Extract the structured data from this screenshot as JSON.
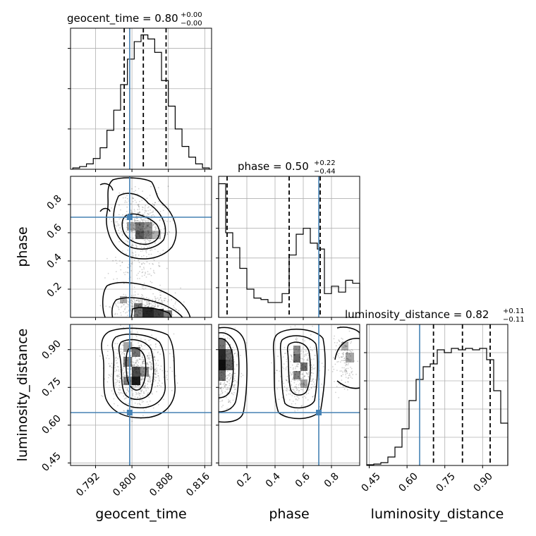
{
  "chart_data": [
    {
      "type": "histogram",
      "panel": "geocent_time-1d",
      "title_param": "geocent_time = 0.80",
      "title_sup": "+0.00",
      "title_sub": "−0.00",
      "xlim": [
        0.7865,
        0.8175
      ],
      "bins": [
        0.787,
        0.7885,
        0.79,
        0.7915,
        0.793,
        0.7945,
        0.796,
        0.7975,
        0.799,
        0.8005,
        0.802,
        0.8035,
        0.805,
        0.8065,
        0.808,
        0.8095,
        0.811,
        0.8125,
        0.814,
        0.8155,
        0.817
      ],
      "heights": [
        0.01,
        0.02,
        0.04,
        0.08,
        0.16,
        0.29,
        0.44,
        0.63,
        0.82,
        0.95,
        1.0,
        0.97,
        0.87,
        0.66,
        0.47,
        0.3,
        0.17,
        0.09,
        0.04,
        0.01
      ],
      "quantiles": [
        0.7983,
        0.8025,
        0.8075
      ],
      "truth": 0.7995
    },
    {
      "type": "histogram",
      "panel": "phase-1d",
      "title_param": "phase = 0.50",
      "title_sup": "+0.22",
      "title_sub": "−0.44",
      "xlim": [
        0.0,
        1.0
      ],
      "bins": [
        0.0,
        0.05,
        0.1,
        0.15,
        0.2,
        0.25,
        0.3,
        0.35,
        0.4,
        0.45,
        0.5,
        0.55,
        0.6,
        0.65,
        0.7,
        0.75,
        0.8,
        0.85,
        0.9,
        0.95,
        1.0
      ],
      "heights": [
        0.9,
        0.57,
        0.47,
        0.33,
        0.19,
        0.13,
        0.12,
        0.1,
        0.1,
        0.16,
        0.42,
        0.56,
        0.6,
        0.5,
        0.46,
        0.16,
        0.21,
        0.17,
        0.25,
        0.23
      ],
      "quantiles": [
        0.06,
        0.5,
        0.72
      ],
      "truth": 0.71
    },
    {
      "type": "histogram",
      "panel": "luminosity_distance-1d",
      "title_param": "luminosity_distance = 0.82",
      "title_sup": "+0.11",
      "title_sub": "−0.11",
      "xlim": [
        0.44,
        1.0
      ],
      "bins": [
        0.44,
        0.468,
        0.496,
        0.524,
        0.552,
        0.58,
        0.608,
        0.636,
        0.664,
        0.692,
        0.72,
        0.748,
        0.776,
        0.804,
        0.832,
        0.86,
        0.888,
        0.916,
        0.944,
        0.972,
        1.0
      ],
      "heights": [
        0.005,
        0.01,
        0.02,
        0.06,
        0.13,
        0.26,
        0.46,
        0.61,
        0.7,
        0.72,
        0.82,
        0.8,
        0.83,
        0.82,
        0.83,
        0.82,
        0.83,
        0.75,
        0.53,
        0.3
      ],
      "quantiles": [
        0.705,
        0.82,
        0.93
      ],
      "truth": 0.65
    },
    {
      "type": "contour",
      "panel": "geocent_time-phase",
      "xlim": [
        0.7865,
        0.8175
      ],
      "ylim": [
        0.0,
        1.0
      ],
      "truth": [
        0.7995,
        0.71
      ]
    },
    {
      "type": "contour",
      "panel": "geocent_time-luminosity_distance",
      "xlim": [
        0.7865,
        0.8175
      ],
      "ylim": [
        0.44,
        1.0
      ],
      "truth": [
        0.7995,
        0.65
      ]
    },
    {
      "type": "contour",
      "panel": "phase-luminosity_distance",
      "xlim": [
        0.0,
        1.0
      ],
      "ylim": [
        0.44,
        1.0
      ],
      "truth": [
        0.71,
        0.65
      ]
    }
  ],
  "axes": {
    "x1_label": "geocent_time",
    "x2_label": "phase",
    "x3_label": "luminosity_distance",
    "y2_label": "phase",
    "y3_label": "luminosity_distance",
    "x1_ticks": [
      "0.792",
      "0.800",
      "0.808",
      "0.816"
    ],
    "x2_ticks": [
      "0.2",
      "0.4",
      "0.6",
      "0.8"
    ],
    "x3_ticks": [
      "0.45",
      "0.60",
      "0.75",
      "0.90"
    ],
    "y2_ticks": [
      "0.2",
      "0.4",
      "0.6",
      "0.8"
    ],
    "y3_ticks": [
      "0.45",
      "0.60",
      "0.75",
      "0.90"
    ]
  },
  "colors": {
    "truth": "#4682b4",
    "hist": "#000000",
    "grid": "#b0b0b0"
  }
}
